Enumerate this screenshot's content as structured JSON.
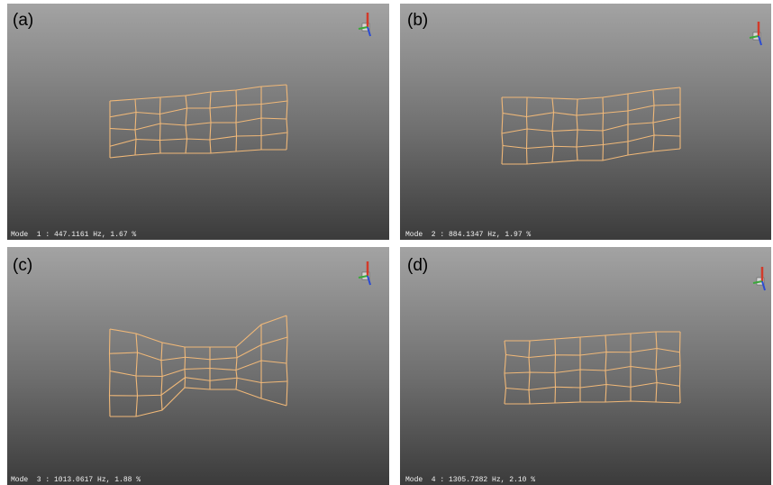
{
  "panels": [
    {
      "label": "(a)",
      "mode": "Mode  1 : 447.1161 Hz, 1.67 %"
    },
    {
      "label": "(b)",
      "mode": "Mode  2 : 884.1347 Hz, 1.97 %"
    },
    {
      "label": "(c)",
      "mode": "Mode  3 : 1013.0617 Hz, 1.88 %"
    },
    {
      "label": "(d)",
      "mode": "Mode  4 : 1305.7282 Hz, 2.10 %"
    }
  ]
}
